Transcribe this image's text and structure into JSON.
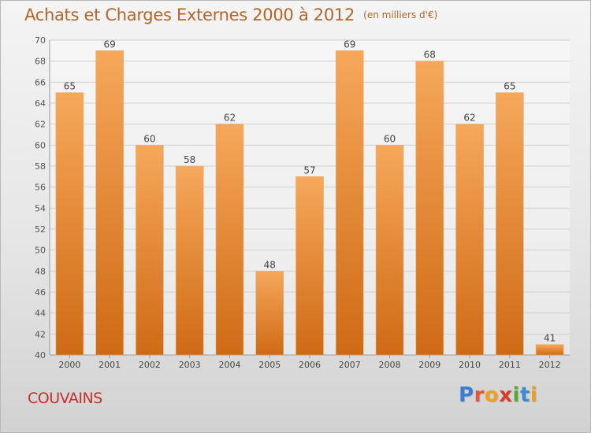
{
  "header": {
    "title": "Achats et Charges Externes 2000 à 2012",
    "unit": "(en milliers d'€)"
  },
  "place": "COUVAINS",
  "brand": {
    "letters": [
      "P",
      "r",
      "o",
      "x",
      "i",
      "t",
      "i"
    ],
    "colors": [
      "#3a7fcf",
      "#e0563a",
      "#f0a020",
      "#d93a2a",
      "#5aa832",
      "#3a8ad8",
      "#e8a020"
    ]
  },
  "colors": {
    "bar_top": "#f6a85a",
    "bar_bottom": "#cf6a14",
    "text": "#b5652a",
    "grid": "#cfcfcf"
  },
  "chart_data": {
    "type": "bar",
    "categories": [
      "2000",
      "2001",
      "2002",
      "2003",
      "2004",
      "2005",
      "2006",
      "2007",
      "2008",
      "2009",
      "2010",
      "2011",
      "2012"
    ],
    "values": [
      65,
      69,
      60,
      58,
      62,
      48,
      57,
      69,
      60,
      68,
      62,
      65,
      41
    ],
    "title": "Achats et Charges Externes 2000 à 2012",
    "xlabel": "",
    "ylabel": "",
    "ylim": [
      40,
      70
    ],
    "yticks": [
      40,
      42,
      44,
      46,
      48,
      50,
      52,
      54,
      56,
      58,
      60,
      62,
      64,
      66,
      68,
      70
    ],
    "grid": true,
    "legend": "none"
  }
}
